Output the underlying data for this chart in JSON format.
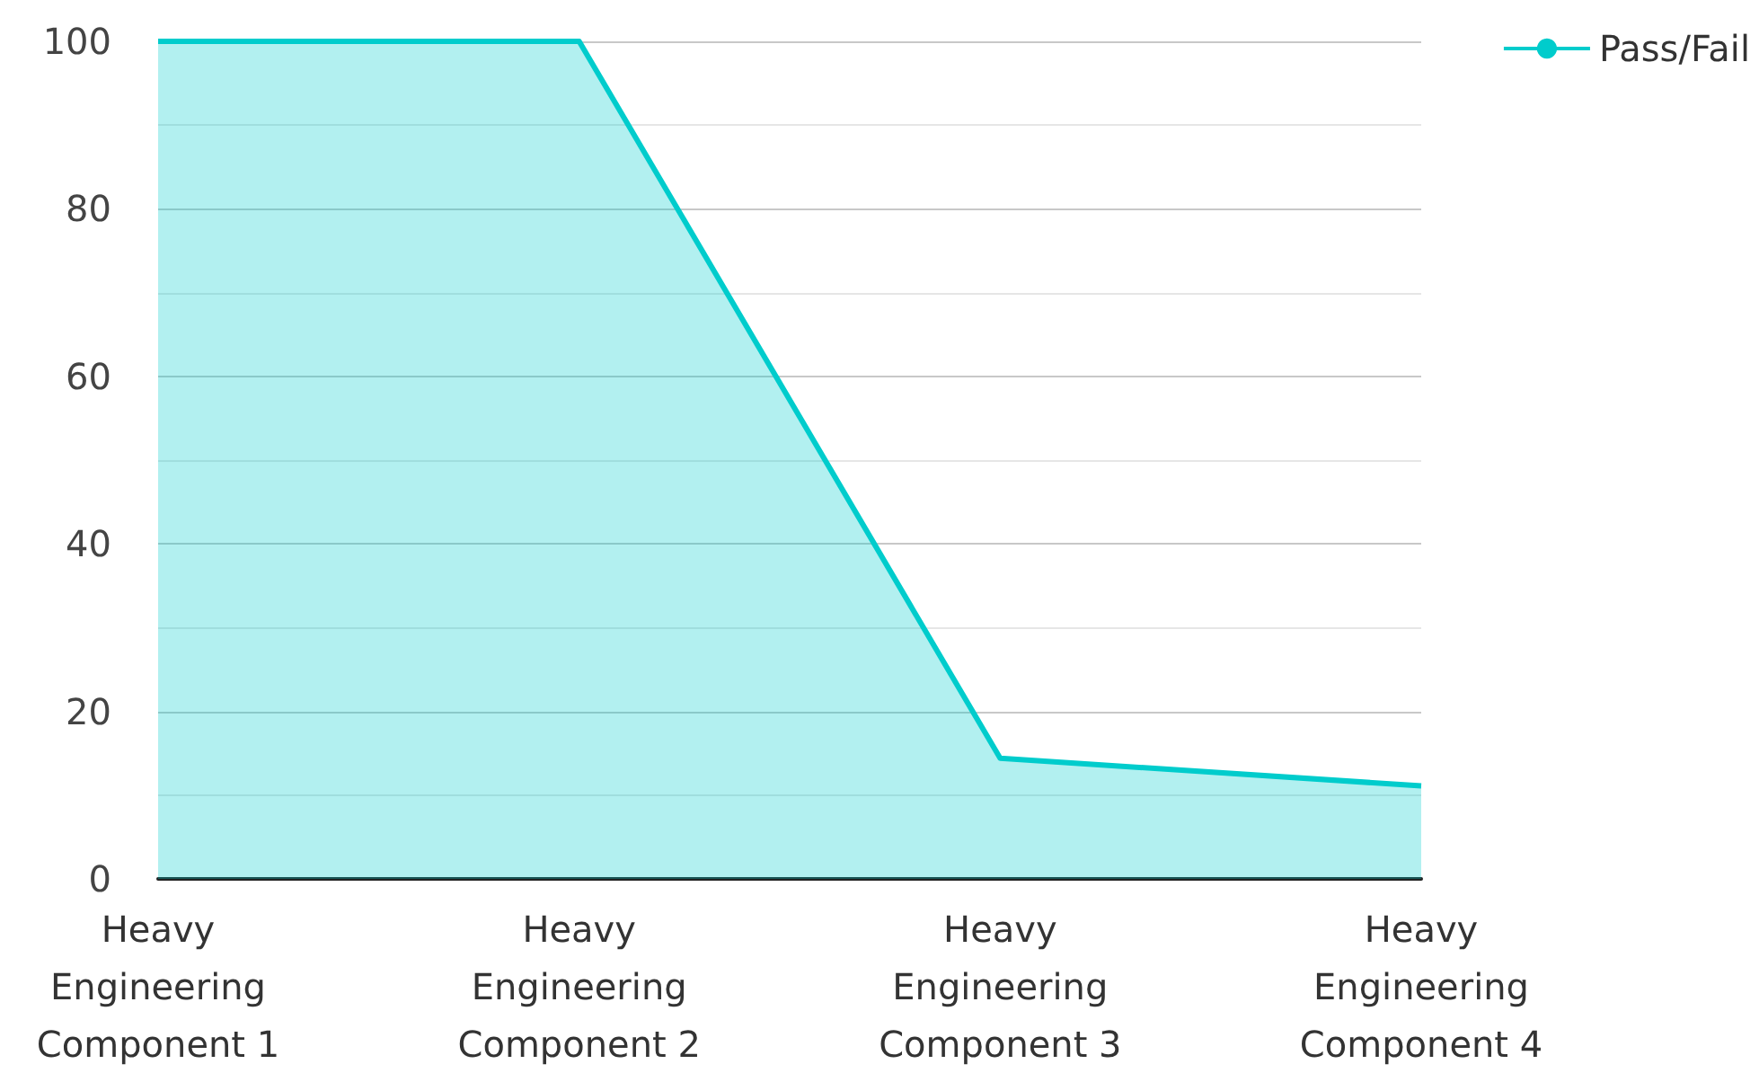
{
  "chart_data": {
    "type": "area",
    "categories": [
      "Heavy\nEngineering\nComponent 1",
      "Heavy\nEngineering\nComponent 2",
      "Heavy\nEngineering\nComponent 3",
      "Heavy\nEngineering\nComponent 4"
    ],
    "series": [
      {
        "name": "Pass/Fail",
        "color": "#00cccc",
        "values": [
          100,
          100,
          14.4,
          11.1
        ]
      }
    ],
    "ylim": [
      0,
      100
    ],
    "yticks": [
      0,
      20,
      40,
      60,
      80,
      100
    ],
    "grid": "y",
    "legend": "top right",
    "marker": "none"
  }
}
